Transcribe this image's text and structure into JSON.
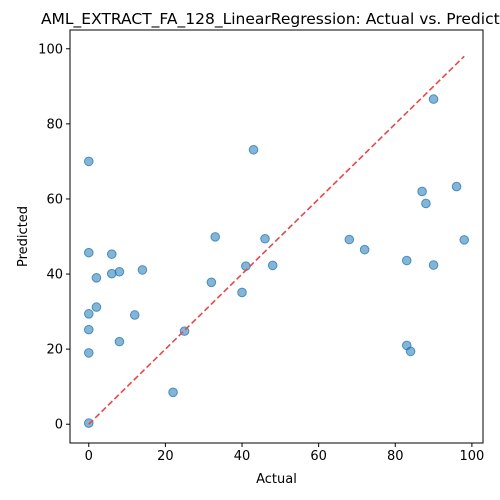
{
  "chart_data": {
    "type": "scatter",
    "title": "AML_EXTRACT_FA_128_LinearRegression: Actual vs. Predicted",
    "xlabel": "Actual",
    "ylabel": "Predicted",
    "xlim": [
      -4.9,
      102.9
    ],
    "ylim": [
      -5,
      105
    ],
    "xticks": [
      0,
      20,
      40,
      60,
      80,
      100
    ],
    "yticks": [
      0,
      20,
      40,
      60,
      80,
      100
    ],
    "grid": false,
    "point_color": "#1f77b4",
    "reference_line_color": "#e8474a",
    "reference_line": {
      "from": [
        0,
        0
      ],
      "to": [
        98,
        98
      ],
      "style": "dashed"
    },
    "x": [
      0,
      0,
      0,
      0,
      0,
      0,
      2,
      2,
      6,
      6,
      8,
      8,
      12,
      14,
      22,
      25,
      32,
      33,
      40,
      41,
      43,
      46,
      48,
      68,
      72,
      83,
      83,
      84,
      87,
      88,
      90,
      90,
      96,
      98
    ],
    "y": [
      0.3,
      19,
      25.2,
      29.4,
      45.7,
      70,
      31.2,
      39,
      40.1,
      45.3,
      40.6,
      22,
      29.1,
      41.1,
      8.5,
      24.8,
      37.8,
      49.9,
      35.1,
      42.1,
      73.1,
      49.4,
      42.3,
      49.2,
      46.5,
      21,
      43.6,
      19.4,
      62,
      58.8,
      86.6,
      42.4,
      63.3,
      49.1
    ]
  }
}
